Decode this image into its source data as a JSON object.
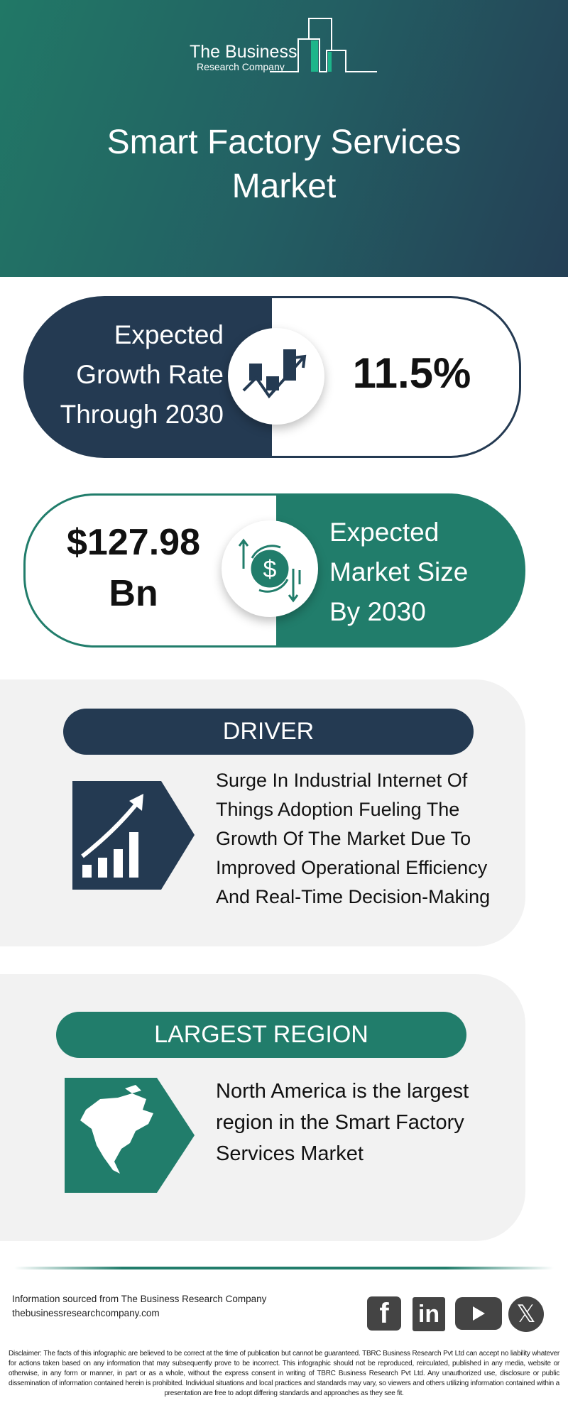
{
  "header": {
    "logo_line1": "The Business",
    "logo_line2": "Research Company",
    "title": "Smart Factory Services Market"
  },
  "growth": {
    "label_lines": [
      "Expected",
      "Growth Rate",
      "Through 2030"
    ],
    "value": "11.5%",
    "icon": "growth-chart-icon"
  },
  "market_size": {
    "value_lines": [
      "$127.98",
      "Bn"
    ],
    "label_lines": [
      "Expected",
      "Market Size",
      "By 2030"
    ],
    "icon": "dollar-cycle-icon"
  },
  "driver": {
    "heading": "DRIVER",
    "text": "Surge In Industrial Internet Of Things Adoption Fueling The Growth Of The Market Due To Improved Operational Efficiency And Real-Time Decision-Making",
    "icon": "rising-bar-chart-icon"
  },
  "region": {
    "heading": "LARGEST REGION",
    "text": "North America is the largest region in the Smart Factory Services Market",
    "icon": "north-america-map-icon"
  },
  "footer": {
    "source": "Information sourced from The Business Research Company",
    "website": "thebusinessresearchcompany.com",
    "social": [
      "facebook",
      "linkedin",
      "youtube",
      "x"
    ],
    "disclaimer": "Disclaimer: The facts of this infographic are believed to be correct at the time of publication but cannot be guaranteed. TBRC Business Research Pvt Ltd can accept no liability whatever for actions taken based on any information that may subsequently prove to be incorrect. This infographic should not be reproduced, reirculated, published in any media, website or otherwise, in any form or manner, in part or as a whole, without the express consent in writing of TBRC Business Research Pvt Ltd. Any unauthorized use, disclosure or public dissemination of information contained herein is prohibited. Individual situations and local practices and standards may vary, so viewers and others utilizing information contained within a presentation are free to adopt differing standards and approaches as they see fit."
  },
  "colors": {
    "navy": "#243a52",
    "teal": "#217d6b",
    "panel": "#f2f2f2"
  }
}
